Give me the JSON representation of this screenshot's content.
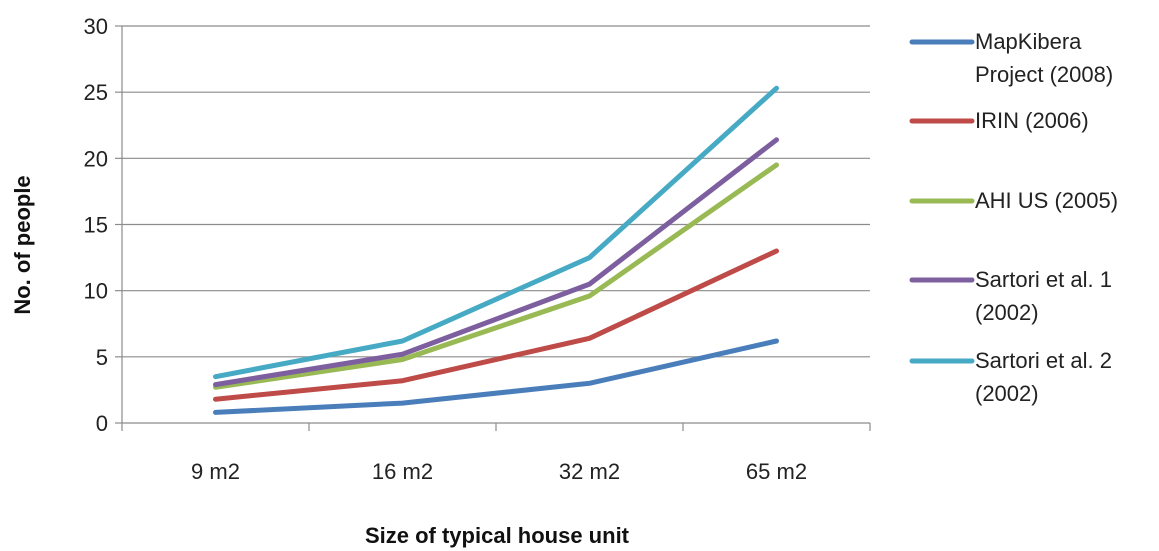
{
  "chart_data": {
    "type": "line",
    "categories": [
      "9 m2",
      "16 m2",
      "32 m2",
      "65 m2"
    ],
    "series": [
      {
        "name": "MapKibera Project (2008)",
        "name_lines": [
          "MapKibera",
          "Project (2008)"
        ],
        "values": [
          0.8,
          1.5,
          3.0,
          6.2
        ],
        "color": "#4a7ebb"
      },
      {
        "name": "IRIN (2006)",
        "name_lines": [
          "IRIN (2006)"
        ],
        "values": [
          1.8,
          3.2,
          6.4,
          13.0
        ],
        "color": "#be4b48"
      },
      {
        "name": "AHI US (2005)",
        "name_lines": [
          "AHI US (2005)"
        ],
        "values": [
          2.7,
          4.8,
          9.6,
          19.5
        ],
        "color": "#98b954"
      },
      {
        "name": "Sartori et al. 1 (2002)",
        "name_lines": [
          "Sartori et al. 1",
          "(2002)"
        ],
        "values": [
          2.9,
          5.2,
          10.5,
          21.4
        ],
        "color": "#7d5fa0"
      },
      {
        "name": "Sartori et al. 2 (2002)",
        "name_lines": [
          "Sartori et al. 2",
          "(2002)"
        ],
        "values": [
          3.5,
          6.2,
          12.5,
          25.3
        ],
        "color": "#46aac5"
      }
    ],
    "title": "",
    "xlabel": "Size of typical house unit",
    "ylabel": "No. of people",
    "ylim": [
      0,
      30
    ],
    "yticks": [
      0,
      5,
      10,
      15,
      20,
      25,
      30
    ],
    "grid": true,
    "legend": "right"
  }
}
